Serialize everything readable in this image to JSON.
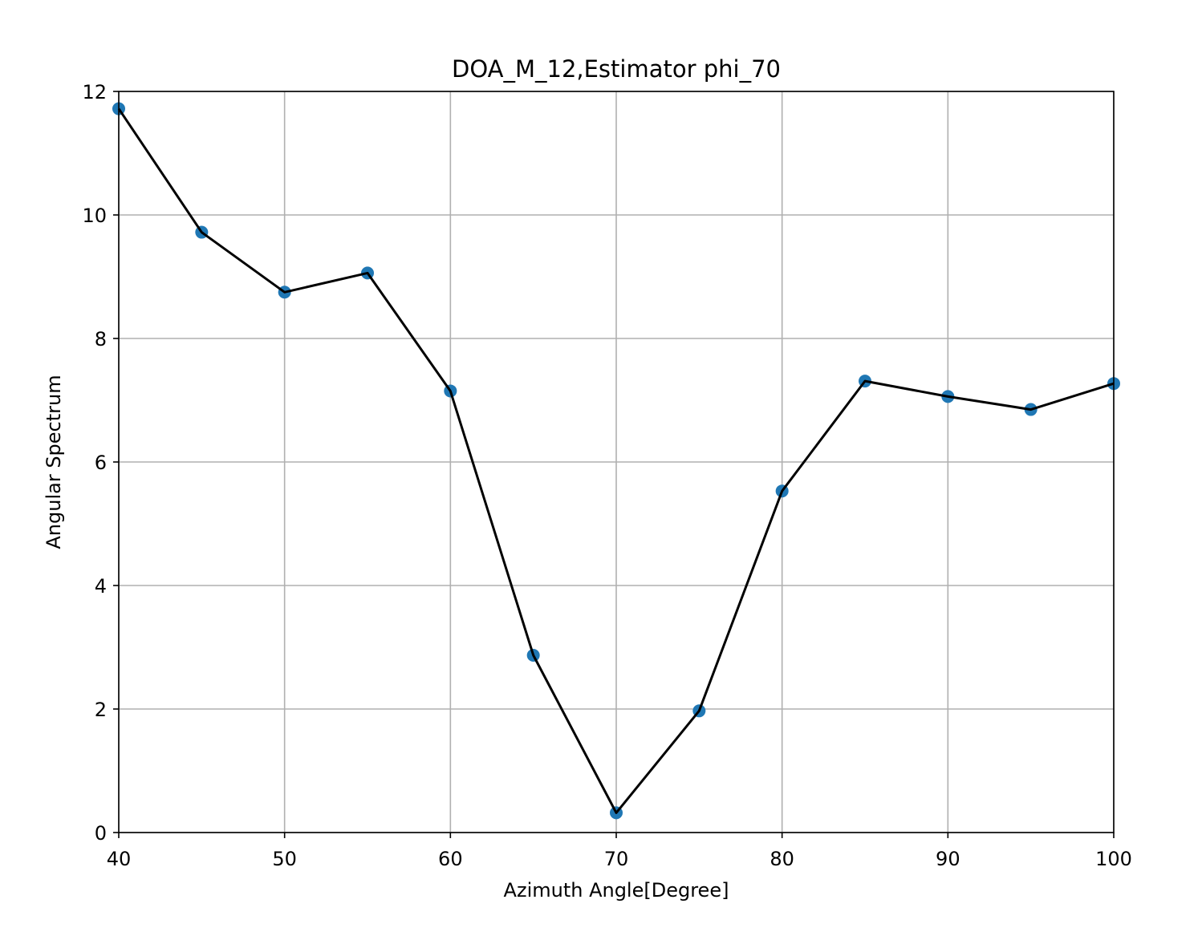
{
  "chart_data": {
    "type": "line",
    "title": "DOA_M_12,Estimator phi_70",
    "xlabel": "Azimuth Angle[Degree]",
    "ylabel": "Angular Spectrum",
    "xlim": [
      40,
      100
    ],
    "ylim": [
      0,
      12
    ],
    "xticks": [
      "40",
      "50",
      "60",
      "70",
      "80",
      "90",
      "100"
    ],
    "yticks": [
      "0",
      "2",
      "4",
      "6",
      "8",
      "10",
      "12"
    ],
    "grid": true,
    "series": [
      {
        "x": [
          40,
          45,
          50,
          55,
          60,
          65,
          70,
          75,
          80,
          85,
          90,
          95,
          100
        ],
        "values": [
          11.72,
          9.72,
          8.75,
          9.06,
          7.15,
          2.87,
          0.32,
          1.97,
          5.53,
          7.31,
          7.06,
          6.85,
          7.27
        ],
        "line_color": "#000000",
        "marker_color": "#1f77b4",
        "marker": "circle"
      }
    ]
  }
}
